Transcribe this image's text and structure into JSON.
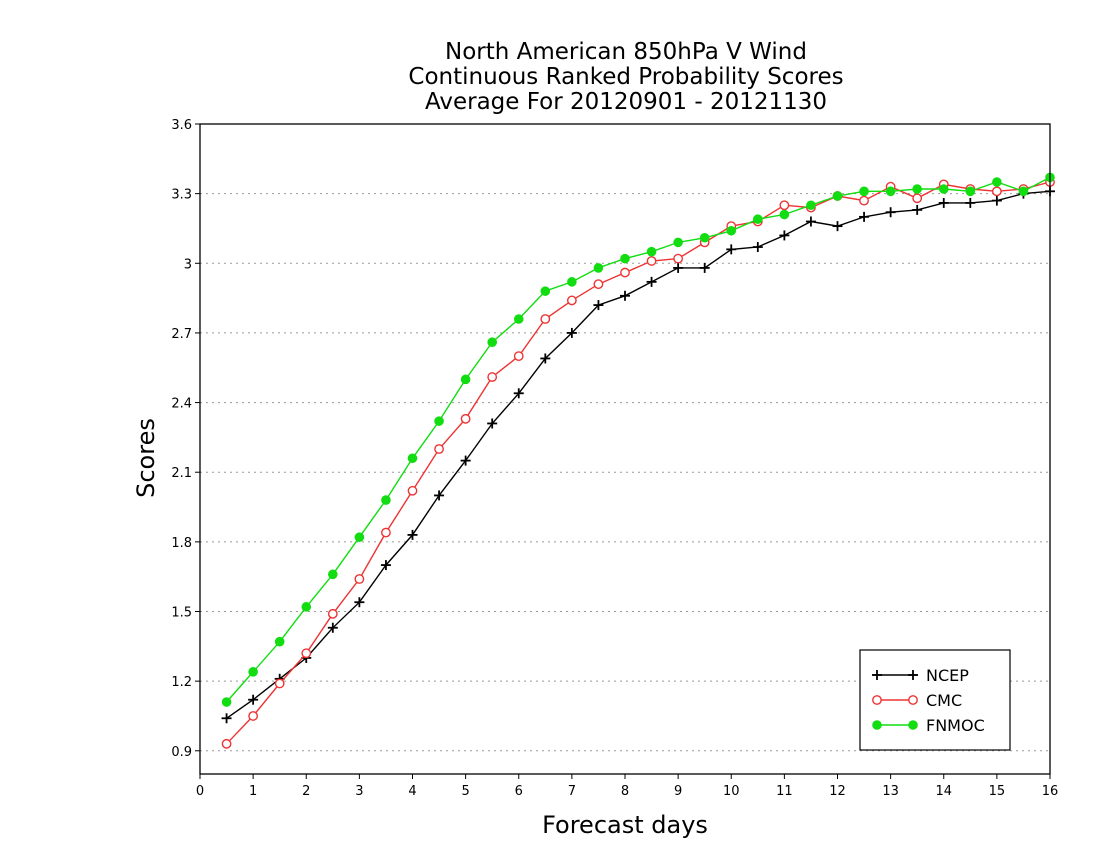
{
  "chart_data": {
    "type": "line",
    "title_lines": [
      "North American 850hPa V Wind",
      "Continuous Ranked Probability Scores",
      "Average For 20120901 - 20121130"
    ],
    "xlabel": "Forecast days",
    "ylabel": "Scores",
    "xlim": [
      0,
      16
    ],
    "ylim": [
      0.8,
      3.6
    ],
    "xticks": [
      "0",
      "1",
      "2",
      "3",
      "4",
      "5",
      "6",
      "7",
      "8",
      "9",
      "10",
      "11",
      "12",
      "13",
      "14",
      "15",
      "16"
    ],
    "yticks": [
      "0.9",
      "1.2",
      "1.5",
      "1.8",
      "2.1",
      "2.4",
      "2.7",
      "3",
      "3.3",
      "3.6"
    ],
    "grid": "horizontal dotted",
    "legend_position": "bottom-right",
    "x": [
      0.5,
      1,
      1.5,
      2,
      2.5,
      3,
      3.5,
      4,
      4.5,
      5,
      5.5,
      6,
      6.5,
      7,
      7.5,
      8,
      8.5,
      9,
      9.5,
      10,
      10.5,
      11,
      11.5,
      12,
      12.5,
      13,
      13.5,
      14,
      14.5,
      15,
      15.5,
      16
    ],
    "series": [
      {
        "name": "NCEP",
        "color": "#000000",
        "marker": "plus",
        "values": [
          1.04,
          1.12,
          1.21,
          1.3,
          1.43,
          1.54,
          1.7,
          1.83,
          2.0,
          2.15,
          2.31,
          2.44,
          2.59,
          2.7,
          2.82,
          2.86,
          2.92,
          2.98,
          2.98,
          3.06,
          3.07,
          3.12,
          3.18,
          3.16,
          3.2,
          3.22,
          3.23,
          3.26,
          3.26,
          3.27,
          3.3,
          3.31
        ]
      },
      {
        "name": "CMC",
        "color": "#ee3333",
        "marker": "open-circle",
        "values": [
          0.93,
          1.05,
          1.19,
          1.32,
          1.49,
          1.64,
          1.84,
          2.02,
          2.2,
          2.33,
          2.51,
          2.6,
          2.76,
          2.84,
          2.91,
          2.96,
          3.01,
          3.02,
          3.09,
          3.16,
          3.18,
          3.25,
          3.24,
          3.29,
          3.27,
          3.33,
          3.28,
          3.34,
          3.32,
          3.31,
          3.32,
          3.35
        ]
      },
      {
        "name": "FNMOC",
        "color": "#11dd11",
        "marker": "filled-circle",
        "values": [
          1.11,
          1.24,
          1.37,
          1.52,
          1.66,
          1.82,
          1.98,
          2.16,
          2.32,
          2.5,
          2.66,
          2.76,
          2.88,
          2.92,
          2.98,
          3.02,
          3.05,
          3.09,
          3.11,
          3.14,
          3.19,
          3.21,
          3.25,
          3.29,
          3.31,
          3.31,
          3.32,
          3.32,
          3.31,
          3.35,
          3.31,
          3.37
        ]
      }
    ]
  }
}
